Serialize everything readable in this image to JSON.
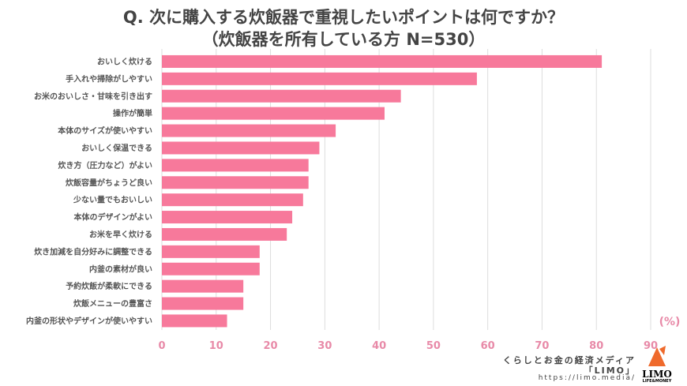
{
  "chart_data": {
    "type": "bar",
    "orientation": "horizontal",
    "title": "Q. 次に購入する炊飯器で重視したいポイントは何ですか？",
    "subtitle": "（炊飯器を所有している方 N=530）",
    "unit_label": "(%)",
    "categories": [
      "おいしく炊ける",
      "手入れや掃除がしやすい",
      "お米のおいしさ・甘味を引き出す",
      "操作が簡単",
      "本体のサイズが使いやすい",
      "おいしく保温できる",
      "炊き方（圧力など）がよい",
      "炊飯容量がちょうど良い",
      "少ない量でもおいしい",
      "本体のデザインがよい",
      "お米を早く炊ける",
      "炊き加減を自分好みに調整できる",
      "内釜の素材が良い",
      "予約炊飯が柔軟にできる",
      "炊飯メニューの豊富さ",
      "内釜の形状やデザインが使いやすい"
    ],
    "values": [
      81,
      58,
      44,
      41,
      32,
      29,
      27,
      27,
      26,
      24,
      23,
      18,
      18,
      15,
      15,
      12
    ],
    "xlim": [
      0,
      90
    ],
    "ticks": [
      "0",
      "10",
      "20",
      "30",
      "40",
      "50",
      "60",
      "70",
      "80",
      "90"
    ],
    "grid": true,
    "bar_color": "#f7799b"
  },
  "footer": {
    "line1": "くらしとお金の経済メディア",
    "line2": "「LIMO」",
    "line3": "https://limo.media/",
    "logo_text": "LIMO",
    "logo_sub": "LIFE&MONEY"
  }
}
